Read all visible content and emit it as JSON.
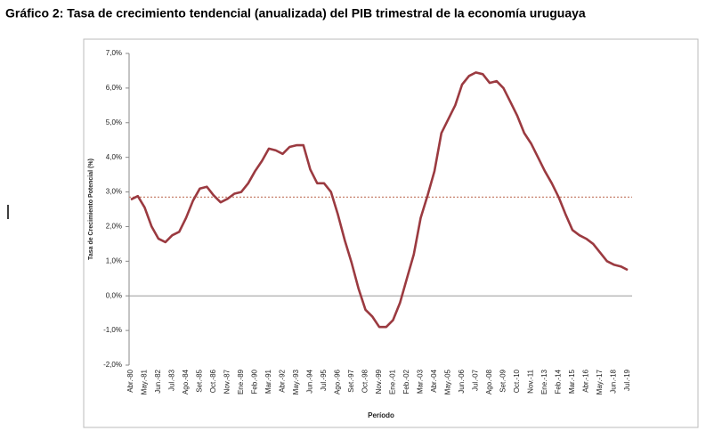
{
  "chart_data": {
    "type": "line",
    "title": "Gráfico 2: Tasa de crecimiento tendencial (anualizada) del PIB trimestral de la economía uruguaya",
    "y_label": "Tasa de Crecimiento Potencial (%)",
    "x_label": "Período",
    "categories": [
      "Abr.-80",
      null,
      "May.-81",
      null,
      "Jun.-82",
      null,
      "Jul.-83",
      null,
      "Ago.-84",
      null,
      "Set.-85",
      null,
      "Oct.-86",
      null,
      "Nov.-87",
      null,
      "Ene.-89",
      null,
      "Feb.-90",
      null,
      "Mar.-91",
      null,
      "Abr.-92",
      null,
      "May.-93",
      null,
      "Jun.-94",
      null,
      "Jul.-95",
      null,
      "Ago.-96",
      null,
      "Set.-97",
      null,
      "Oct.-98",
      null,
      "Nov.-99",
      null,
      "Ene.-01",
      null,
      "Feb.-02",
      null,
      "Mar.-03",
      null,
      "Abr.-04",
      null,
      "May.-05",
      null,
      "Jun.-06",
      null,
      "Jul.-07",
      null,
      "Ago.-08",
      null,
      "Set.-09",
      null,
      "Oct.-10",
      null,
      "Nov.-11",
      null,
      "Ene.-13",
      null,
      "Feb.-14",
      null,
      "Mar.-15",
      null,
      "Abr.-16",
      null,
      "May.-17",
      null,
      "Jun.-18",
      null,
      "Jul.-19"
    ],
    "series": [
      {
        "color": "#9b3a40",
        "values": [
          2.78,
          2.88,
          2.55,
          2.0,
          1.65,
          1.55,
          1.75,
          1.85,
          2.25,
          2.75,
          3.1,
          3.15,
          2.9,
          2.7,
          2.8,
          2.95,
          3.0,
          3.25,
          3.6,
          3.9,
          4.25,
          4.2,
          4.1,
          4.3,
          4.35,
          4.35,
          3.65,
          3.25,
          3.25,
          3.0,
          2.35,
          1.6,
          0.95,
          0.2,
          -0.4,
          -0.6,
          -0.9,
          -0.9,
          -0.7,
          -0.2,
          0.5,
          1.2,
          2.25,
          2.9,
          3.6,
          4.7,
          5.1,
          5.5,
          6.1,
          6.35,
          6.45,
          6.4,
          6.15,
          6.2,
          6.0,
          5.6,
          5.2,
          4.7,
          4.4,
          4.0,
          3.6,
          3.25,
          2.85,
          2.35,
          1.9,
          1.75,
          1.65,
          1.5,
          1.25,
          1.0,
          0.9,
          0.85,
          0.75
        ]
      }
    ],
    "reference_line": {
      "value": 2.85,
      "color": "#c8826f"
    },
    "ylim": [
      -2,
      7
    ],
    "yticks": [
      {
        "value": -2,
        "label": "-2,0%"
      },
      {
        "value": -1,
        "label": "-1,0%"
      },
      {
        "value": 0,
        "label": "0,0%"
      },
      {
        "value": 1,
        "label": "1,0%"
      },
      {
        "value": 2,
        "label": "2,0%"
      },
      {
        "value": 3,
        "label": "3,0%"
      },
      {
        "value": 4,
        "label": "4,0%"
      },
      {
        "value": 5,
        "label": "5,0%"
      },
      {
        "value": 6,
        "label": "6,0%"
      },
      {
        "value": 7,
        "label": "7,0%"
      }
    ],
    "grid": false
  }
}
